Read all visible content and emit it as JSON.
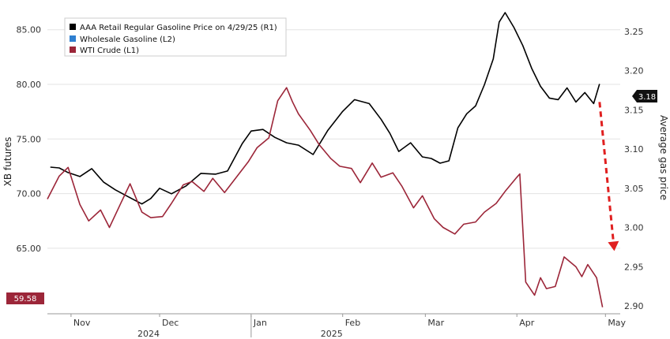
{
  "chart_data": {
    "type": "line",
    "title": "",
    "y_left_label": "XB futures",
    "y_right_label": "Average gas price",
    "y_left_ticks": [
      "85.00",
      "80.00",
      "75.00",
      "70.00",
      "65.00"
    ],
    "y_left_tick_values": [
      85,
      80,
      75,
      70,
      65
    ],
    "y_left_range": [
      59,
      87
    ],
    "y_right_ticks": [
      "3.25",
      "3.20",
      "3.15",
      "3.10",
      "3.05",
      "3.00",
      "2.95",
      "2.90"
    ],
    "y_right_tick_values": [
      3.25,
      3.2,
      3.15,
      3.1,
      3.05,
      3.0,
      2.95,
      2.9
    ],
    "y_right_range": [
      2.89,
      3.28
    ],
    "x_range": [
      "2024-10-24",
      "2025-05-06"
    ],
    "month_ticks": [
      {
        "label": "Nov",
        "date": "2024-11-01"
      },
      {
        "label": "Dec",
        "date": "2024-12-01"
      },
      {
        "label": "Jan",
        "date": "2025-01-01"
      },
      {
        "label": "Feb",
        "date": "2025-02-01"
      },
      {
        "label": "Mar",
        "date": "2025-03-01"
      },
      {
        "label": "Apr",
        "date": "2025-04-01"
      },
      {
        "label": "May",
        "date": "2025-05-01"
      }
    ],
    "year_labels": [
      {
        "label": "2024",
        "date": "2024-12-01"
      },
      {
        "label": "2025",
        "date": "2025-02-01"
      }
    ],
    "year_divider": "2025-01-01",
    "legend": [
      {
        "label": "AAA Retail Regular Gasoline Price on 4/29/25 (R1)",
        "color": "#000000"
      },
      {
        "label": "Wholesale Gasoline (L2)",
        "color": "#2f7fd0"
      },
      {
        "label": "WTI Crude (L1)",
        "color": "#9c2639"
      }
    ],
    "legend_position": "top-left",
    "grid": "horizontal",
    "last_values": {
      "aaa": {
        "label": "3.18",
        "value": 3.18
      },
      "wti": {
        "label": "59.58",
        "value": 59.58
      }
    },
    "annotation": {
      "type": "dashed-arrow",
      "color": "#e02020",
      "from": {
        "x": "2025-04-29",
        "y": 3.16
      },
      "to": {
        "x": "2025-05-04",
        "y": 2.97
      }
    },
    "series": [
      {
        "name": "AAA Retail Regular Gasoline Price on 4/29/25 (R1)",
        "axis": "right",
        "color": "#000000",
        "x": [
          "2024-10-25",
          "2024-10-28",
          "2024-10-31",
          "2024-11-04",
          "2024-11-08",
          "2024-11-12",
          "2024-11-16",
          "2024-11-20",
          "2024-11-25",
          "2024-11-28",
          "2024-12-01",
          "2024-12-05",
          "2024-12-10",
          "2024-12-15",
          "2024-12-20",
          "2024-12-24",
          "2024-12-29",
          "2025-01-01",
          "2025-01-05",
          "2025-01-09",
          "2025-01-13",
          "2025-01-17",
          "2025-01-22",
          "2025-01-27",
          "2025-02-01",
          "2025-02-05",
          "2025-02-10",
          "2025-02-14",
          "2025-02-17",
          "2025-02-20",
          "2025-02-24",
          "2025-02-28",
          "2025-03-03",
          "2025-03-06",
          "2025-03-09",
          "2025-03-12",
          "2025-03-15",
          "2025-03-18",
          "2025-03-21",
          "2025-03-24",
          "2025-03-26",
          "2025-03-28",
          "2025-03-31",
          "2025-04-03",
          "2025-04-06",
          "2025-04-09",
          "2025-04-12",
          "2025-04-15",
          "2025-04-18",
          "2025-04-21",
          "2025-04-24",
          "2025-04-27",
          "2025-04-29"
        ],
        "y": [
          3.077,
          3.076,
          3.07,
          3.065,
          3.075,
          3.058,
          3.048,
          3.04,
          3.03,
          3.037,
          3.05,
          3.043,
          3.053,
          3.069,
          3.068,
          3.072,
          3.107,
          3.123,
          3.125,
          3.115,
          3.108,
          3.105,
          3.093,
          3.124,
          3.148,
          3.163,
          3.158,
          3.138,
          3.12,
          3.097,
          3.108,
          3.09,
          3.088,
          3.082,
          3.085,
          3.127,
          3.145,
          3.155,
          3.182,
          3.215,
          3.262,
          3.274,
          3.255,
          3.232,
          3.203,
          3.18,
          3.165,
          3.163,
          3.178,
          3.16,
          3.172,
          3.158,
          3.183
        ]
      },
      {
        "name": "WTI Crude (L1)",
        "axis": "left",
        "color": "#9c2639",
        "x": [
          "2024-10-24",
          "2024-10-28",
          "2024-10-31",
          "2024-11-04",
          "2024-11-07",
          "2024-11-11",
          "2024-11-14",
          "2024-11-18",
          "2024-11-21",
          "2024-11-25",
          "2024-11-28",
          "2024-12-02",
          "2024-12-05",
          "2024-12-09",
          "2024-12-12",
          "2024-12-16",
          "2024-12-19",
          "2024-12-23",
          "2024-12-27",
          "2024-12-31",
          "2025-01-03",
          "2025-01-07",
          "2025-01-10",
          "2025-01-13",
          "2025-01-15",
          "2025-01-17",
          "2025-01-21",
          "2025-01-24",
          "2025-01-28",
          "2025-01-31",
          "2025-02-04",
          "2025-02-07",
          "2025-02-11",
          "2025-02-14",
          "2025-02-18",
          "2025-02-21",
          "2025-02-25",
          "2025-02-28",
          "2025-03-04",
          "2025-03-07",
          "2025-03-11",
          "2025-03-14",
          "2025-03-18",
          "2025-03-21",
          "2025-03-25",
          "2025-03-28",
          "2025-04-01",
          "2025-04-02",
          "2025-04-04",
          "2025-04-07",
          "2025-04-09",
          "2025-04-11",
          "2025-04-14",
          "2025-04-17",
          "2025-04-21",
          "2025-04-23",
          "2025-04-25",
          "2025-04-28",
          "2025-04-30"
        ],
        "y": [
          69.5,
          71.6,
          72.4,
          69.0,
          67.5,
          68.5,
          66.9,
          69.2,
          70.9,
          68.3,
          67.8,
          67.9,
          69.1,
          70.8,
          71.1,
          70.2,
          71.4,
          70.1,
          71.5,
          72.9,
          74.2,
          75.1,
          78.5,
          79.7,
          78.4,
          77.3,
          75.8,
          74.5,
          73.2,
          72.5,
          72.3,
          71.0,
          72.8,
          71.5,
          71.9,
          70.7,
          68.7,
          69.8,
          67.7,
          66.9,
          66.3,
          67.2,
          67.4,
          68.3,
          69.1,
          70.2,
          71.5,
          71.8,
          61.9,
          60.7,
          62.3,
          61.3,
          61.5,
          64.2,
          63.3,
          62.4,
          63.5,
          62.3,
          59.6
        ]
      }
    ]
  }
}
